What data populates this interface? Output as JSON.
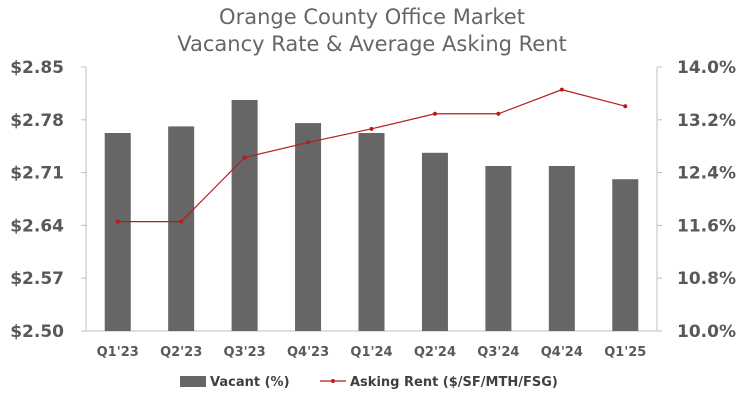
{
  "chart_data": {
    "type": "bar+line",
    "title": [
      "Orange County Office Market",
      "Vacancy Rate & Average Asking Rent"
    ],
    "categories": [
      "Q1'23",
      "Q2'23",
      "Q3'23",
      "Q4'23",
      "Q1'24",
      "Q2'24",
      "Q3'24",
      "Q4'24",
      "Q1'25"
    ],
    "left_axis": {
      "ticks": [
        "$2.85",
        "$2.78",
        "$2.71",
        "$2.64",
        "$2.57",
        "$2.50"
      ],
      "range": [
        2.5,
        2.85
      ]
    },
    "right_axis": {
      "ticks": [
        "14.0%",
        "13.2%",
        "12.4%",
        "11.6%",
        "10.8%",
        "10.0%"
      ],
      "range": [
        10.0,
        14.0
      ]
    },
    "series": [
      {
        "name": "Vacant (%)",
        "type": "bar",
        "axis": "right",
        "color": "#666666",
        "values": [
          13.0,
          13.1,
          13.5,
          13.15,
          13.0,
          12.7,
          12.5,
          12.5,
          12.3
        ]
      },
      {
        "name": "Asking Rent ($/SF/MTH/FSG)",
        "type": "line",
        "axis": "left",
        "color": "#b71c1c",
        "values": [
          2.645,
          2.645,
          2.73,
          2.75,
          2.768,
          2.788,
          2.788,
          2.82,
          2.798
        ]
      }
    ],
    "grid": false,
    "legend_position": "bottom"
  }
}
